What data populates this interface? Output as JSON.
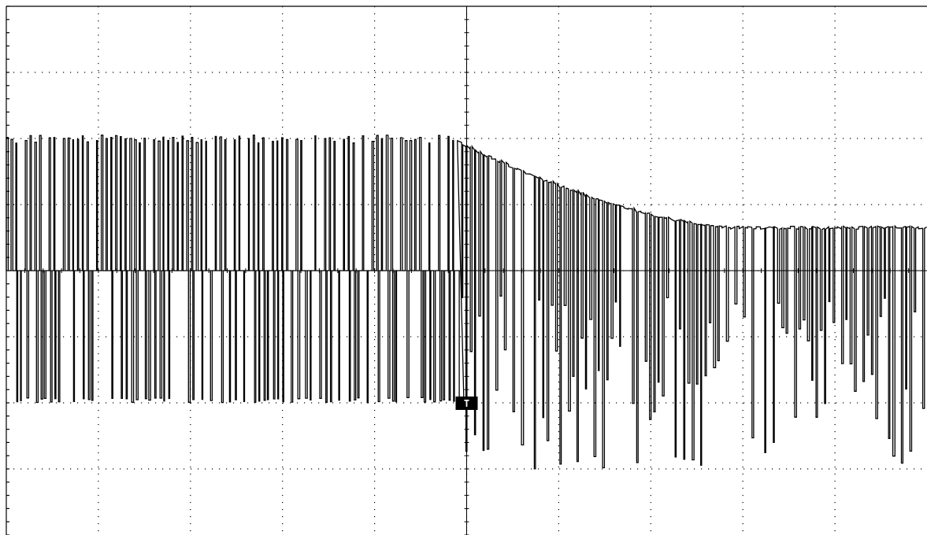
{
  "chart_data": {
    "type": "line",
    "title": "",
    "xlabel": "",
    "ylabel": "",
    "grid": true,
    "grid_style": "dotted",
    "divisions": {
      "x": 10,
      "y": 8
    },
    "xlim": [
      0,
      10
    ],
    "ylim": [
      -4,
      4
    ],
    "colors": {
      "background": "#ffffff",
      "trace": "#000000",
      "grid": "#000000"
    },
    "trigger_marker": {
      "label": "T",
      "x": 5.0,
      "y": -2.0
    },
    "series": [
      {
        "segments": [
          {
            "x_start": 0.0,
            "x_end": 4.9,
            "high": 2.05,
            "baseline": 0.0,
            "low": -2.0,
            "spikes": 95
          },
          {
            "x_start": 4.9,
            "x_end": 10.0,
            "high_start": 1.95,
            "high_end": 0.65,
            "baseline": 0.65,
            "low_min": -3.0,
            "low_max": -0.3,
            "spikes": 110
          }
        ],
        "trigger_drop": {
          "x": 4.92,
          "from": 0.0,
          "to": -2.0
        }
      }
    ]
  }
}
